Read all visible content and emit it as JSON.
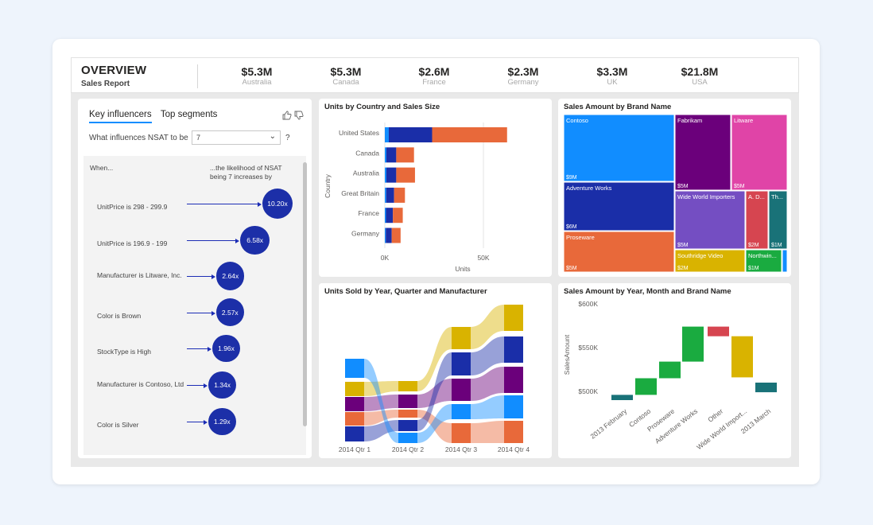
{
  "header": {
    "title": "OVERVIEW",
    "subtitle": "Sales Report",
    "kpis": [
      {
        "value": "$5.3M",
        "label": "Australia"
      },
      {
        "value": "$5.3M",
        "label": "Canada"
      },
      {
        "value": "$2.6M",
        "label": "France"
      },
      {
        "value": "$2.3M",
        "label": "Germany"
      },
      {
        "value": "$3.3M",
        "label": "UK"
      },
      {
        "value": "$21.8M",
        "label": "USA"
      }
    ]
  },
  "key_influencers": {
    "tabs": [
      "Key influencers",
      "Top segments"
    ],
    "question_label": "What influences NSAT to be",
    "selected_value": "7",
    "help": "?",
    "when_label": "When...",
    "likelihood_label": "...the likelihood of NSAT being 7 increases by",
    "influencers": [
      {
        "label": "UnitPrice is 298 - 299.9",
        "value": "10.20x",
        "factor": 10.2
      },
      {
        "label": "UnitPrice is 196.9 - 199",
        "value": "6.58x",
        "factor": 6.58
      },
      {
        "label": "Manufacturer is Litware, Inc.",
        "value": "2.64x",
        "factor": 2.64
      },
      {
        "label": "Color is Brown",
        "value": "2.57x",
        "factor": 2.57
      },
      {
        "label": "StockType is High",
        "value": "1.96x",
        "factor": 1.96
      },
      {
        "label": "Manufacturer is Contoso, Ltd",
        "value": "1.34x",
        "factor": 1.34
      },
      {
        "label": "Color is Silver",
        "value": "1.29x",
        "factor": 1.29
      }
    ]
  },
  "colors": {
    "dark_blue": "#1a2ea8",
    "orange": "#e8693a",
    "light_blue": "#118dff",
    "purple": "#6b007b",
    "magenta": "#e044a7",
    "violet": "#744ec2",
    "yellow": "#d9b300",
    "red": "#d64550",
    "teal": "#197278",
    "green": "#1aab40"
  },
  "chart_data": [
    {
      "title": "Units by Country and Sales Size",
      "type": "bar",
      "orientation": "horizontal",
      "categories": [
        "United States",
        "Canada",
        "Australia",
        "Great Britain",
        "France",
        "Germany"
      ],
      "series": [
        {
          "values": [
            2000,
            800,
            800,
            700,
            600,
            500
          ],
          "color": "#118dff"
        },
        {
          "values": [
            22000,
            5000,
            5000,
            4000,
            3500,
            3000
          ],
          "color": "#1a2ea8"
        },
        {
          "values": [
            38000,
            9000,
            9500,
            5500,
            5000,
            4500
          ],
          "color": "#e8693a"
        }
      ],
      "xlabel": "Units",
      "ylabel": "Country",
      "xticks": [
        "0K",
        "50K"
      ],
      "xlim": [
        0,
        60000
      ]
    },
    {
      "title": "Sales Amount by Brand Name",
      "type": "treemap",
      "items": [
        {
          "label": "Contoso",
          "value": "$9M",
          "amount": 9,
          "color": "#118dff"
        },
        {
          "label": "Adventure Works",
          "value": "$6M",
          "amount": 6,
          "color": "#1a2ea8"
        },
        {
          "label": "Proseware",
          "value": "$5M",
          "amount": 5,
          "color": "#e8693a"
        },
        {
          "label": "Fabrikam",
          "value": "$5M",
          "amount": 5,
          "color": "#6b007b"
        },
        {
          "label": "Litware",
          "value": "$5M",
          "amount": 5,
          "color": "#e044a7"
        },
        {
          "label": "Wide World Importers",
          "value": "$5M",
          "amount": 5,
          "color": "#744ec2"
        },
        {
          "label": "A. D...",
          "value": "$2M",
          "amount": 2,
          "color": "#d64550"
        },
        {
          "label": "Th...",
          "value": "$1M",
          "amount": 1,
          "color": "#197278"
        },
        {
          "label": "Southridge Video",
          "value": "$2M",
          "amount": 2,
          "color": "#d9b300"
        },
        {
          "label": "Northwin...",
          "value": "$1M",
          "amount": 1,
          "color": "#1aab40"
        }
      ]
    },
    {
      "title": "Units Sold by Year, Quarter and Manufacturer",
      "type": "ribbon",
      "categories": [
        "2014 Qtr 1",
        "2014 Qtr 2",
        "2014 Qtr 3",
        "2014 Qtr 4"
      ]
    },
    {
      "title": "Sales Amount by Year, Month and Brand Name",
      "type": "waterfall",
      "categories": [
        "2013 February",
        "Contoso",
        "Proseware",
        "Adventure Works",
        "Other",
        "Wide World Import...",
        "2013 March"
      ],
      "ylabel": "SalesAmount",
      "yticks": [
        "$600K",
        "$550K",
        "$500K"
      ],
      "ylim": [
        485000,
        605000
      ]
    }
  ]
}
